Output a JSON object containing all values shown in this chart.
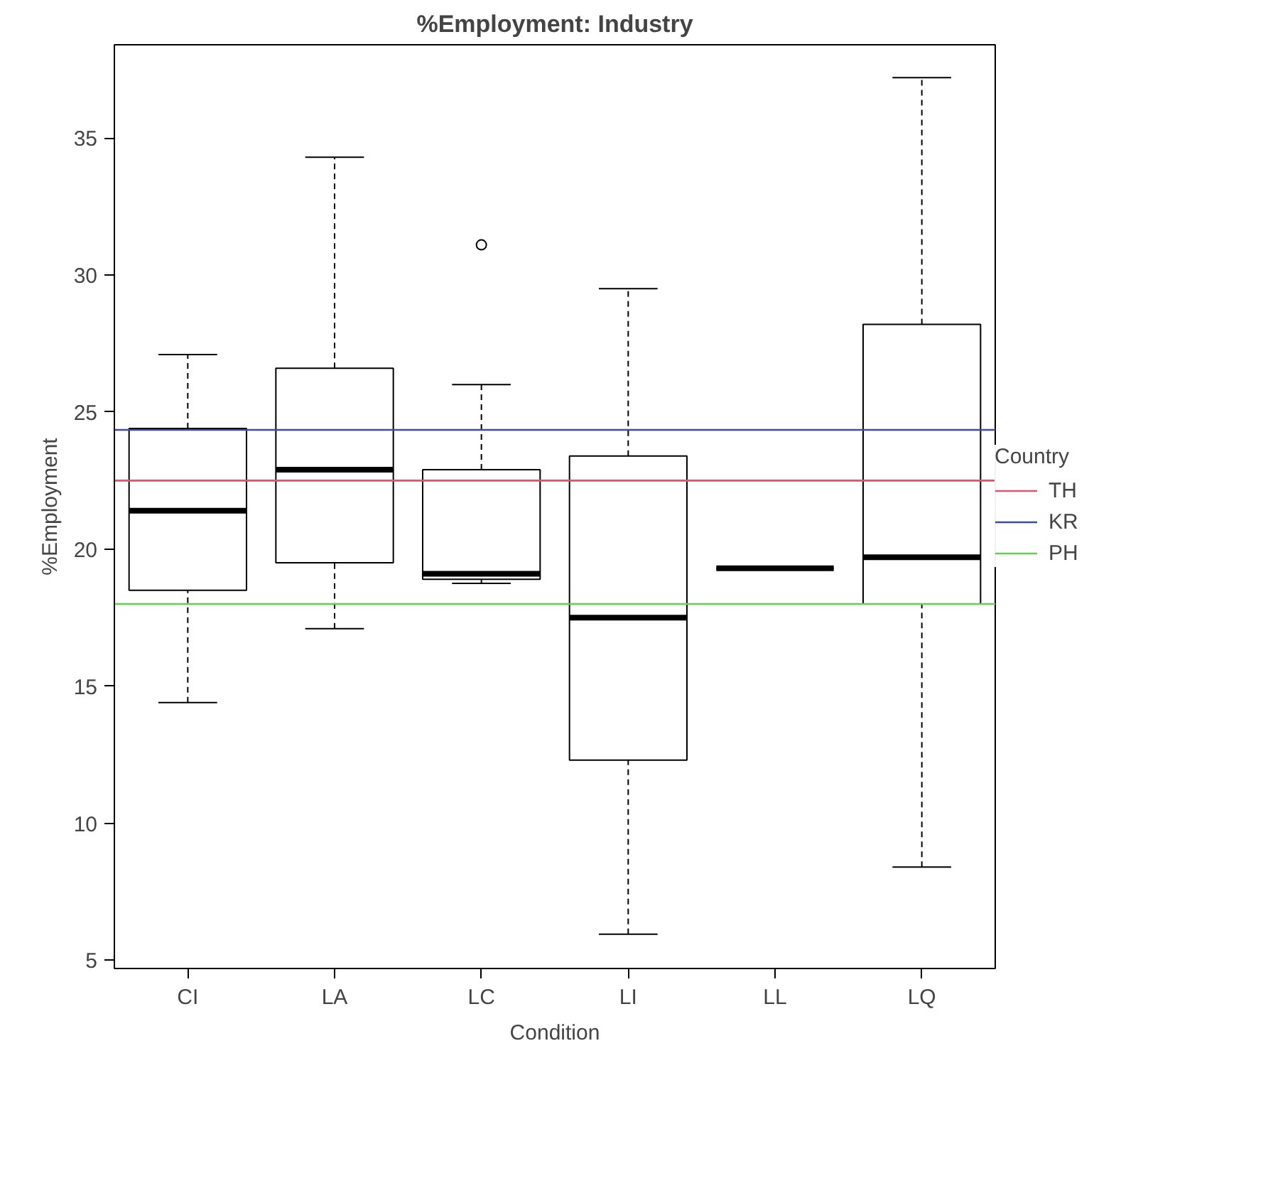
{
  "chart_data": {
    "type": "box",
    "title": "%Employment: Industry",
    "xlabel": "Condition",
    "ylabel": "%Employment",
    "legend_title": "Country",
    "categories": [
      "CI",
      "LA",
      "LC",
      "LI",
      "LL",
      "LQ"
    ],
    "boxes": [
      {
        "low": 14.4,
        "q1": 18.5,
        "median": 21.4,
        "q3": 24.4,
        "high": 27.1
      },
      {
        "low": 17.1,
        "q1": 19.5,
        "median": 22.9,
        "q3": 26.6,
        "high": 34.3
      },
      {
        "low": 18.75,
        "q1": 18.9,
        "median": 19.1,
        "q3": 22.9,
        "high": 26.0,
        "outliers": [
          31.1
        ]
      },
      {
        "low": 5.95,
        "q1": 12.3,
        "median": 17.5,
        "q3": 23.4,
        "high": 29.5
      },
      {
        "low": 19.3,
        "q1": 19.3,
        "median": 19.3,
        "q3": 19.3,
        "high": 19.3
      },
      {
        "low": 8.4,
        "q1": 18.0,
        "median": 19.7,
        "q3": 28.2,
        "high": 37.2
      }
    ],
    "ylim": [
      4.7,
      38.4
    ],
    "yticks": [
      5,
      10,
      15,
      20,
      25,
      30,
      35
    ],
    "grid": false,
    "legend": "right",
    "ref_lines": [
      {
        "axis": "y",
        "value": 22.5,
        "label": "TH",
        "color": "#df536b"
      },
      {
        "axis": "y",
        "value": 24.35,
        "label": "KR",
        "color": "#3f4ba0"
      },
      {
        "axis": "y",
        "value": 18.0,
        "label": "PH",
        "color": "#61d04f"
      }
    ]
  }
}
